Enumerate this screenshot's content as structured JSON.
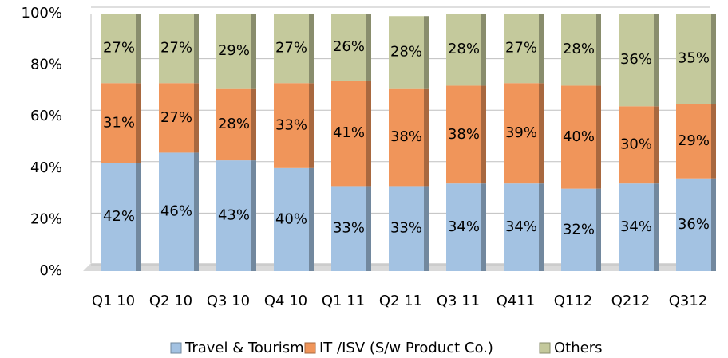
{
  "chart_data": {
    "type": "stacked_bar",
    "categories": [
      "Q1 10",
      "Q2 10",
      "Q3 10",
      "Q4 10",
      "Q1 11",
      "Q2 11",
      "Q3 11",
      "Q411",
      "Q112",
      "Q212",
      "Q312"
    ],
    "series": [
      {
        "name": "Travel & Tourism",
        "color": "#a3c2e2",
        "values": [
          42,
          46,
          43,
          40,
          33,
          33,
          34,
          34,
          32,
          34,
          36
        ],
        "value_labels": [
          "42%",
          "46%",
          "43%",
          "40%",
          "33%",
          "33%",
          "34%",
          "34%",
          "32%",
          "34%",
          "36%"
        ]
      },
      {
        "name": "IT /ISV (S/w Product Co.)",
        "color": "#f0955a",
        "values": [
          31,
          27,
          28,
          33,
          41,
          38,
          38,
          39,
          40,
          30,
          29
        ],
        "value_labels": [
          "31%",
          "27%",
          "28%",
          "33%",
          "41%",
          "38%",
          "38%",
          "39%",
          "40%",
          "30%",
          "29%"
        ]
      },
      {
        "name": "Others",
        "color": "#c4c99c",
        "values": [
          27,
          27,
          29,
          27,
          26,
          28,
          28,
          27,
          28,
          36,
          35
        ],
        "value_labels": [
          "27%",
          "27%",
          "29%",
          "27%",
          "26%",
          "28%",
          "28%",
          "27%",
          "28%",
          "36%",
          "35%"
        ]
      }
    ],
    "ylim": [
      0,
      100
    ],
    "yticks": [
      {
        "value": 0,
        "label": "0%"
      },
      {
        "value": 20,
        "label": "20%"
      },
      {
        "value": 40,
        "label": "40%"
      },
      {
        "value": 60,
        "label": "60%"
      },
      {
        "value": 80,
        "label": "80%"
      },
      {
        "value": 100,
        "label": "100%"
      }
    ],
    "grid": true,
    "legend": "bottom"
  }
}
